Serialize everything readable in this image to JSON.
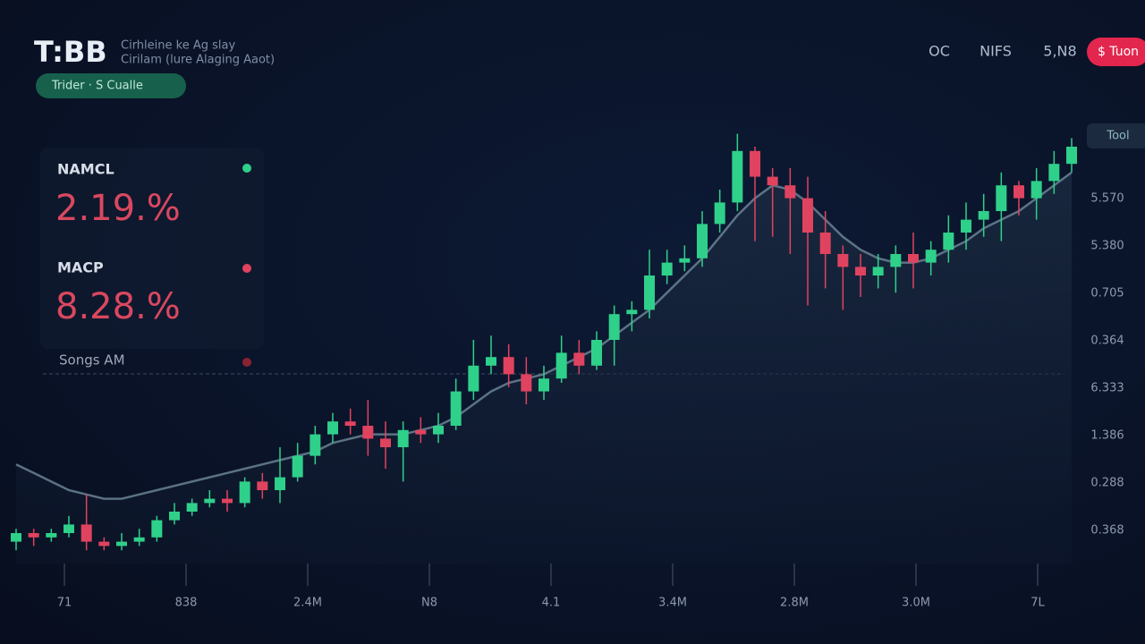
{
  "header": {
    "logo": "T:BB",
    "subtitle_1": "Cirhleine ke Ag slay",
    "subtitle_2": "Cirilam (lure Alaging Aaot)",
    "badge": "Trider · S Cualle"
  },
  "nav": [
    "OC",
    "NIFS",
    "5,N8"
  ],
  "nav_button": "$ Tuon",
  "side_tag": "Tool",
  "stats": [
    {
      "label": "NAMCL",
      "value": "2.19.%"
    },
    {
      "label": "MACP",
      "value": "8.28.%"
    },
    {
      "label": "Songs AM"
    }
  ],
  "chart_data": {
    "type": "candlestick",
    "ylim": [
      0,
      100
    ],
    "up_color": "#2fd08a",
    "down_color": "#e0435f",
    "open": [
      3,
      5,
      4,
      5,
      7,
      3,
      2,
      3,
      4,
      8,
      10,
      12,
      13,
      12,
      17,
      15,
      18,
      23,
      28,
      31,
      30,
      27,
      25,
      29,
      28,
      30,
      38,
      44,
      46,
      42,
      38,
      41,
      47,
      44,
      50,
      56,
      57,
      65,
      68,
      69,
      77,
      82,
      94,
      88,
      86,
      83,
      75,
      70,
      67,
      65,
      67,
      70,
      68,
      71,
      75,
      78,
      80,
      86,
      83,
      87,
      91
    ],
    "close": [
      5,
      4,
      5,
      7,
      3,
      2,
      3,
      4,
      8,
      10,
      12,
      13,
      12,
      17,
      15,
      18,
      23,
      28,
      31,
      30,
      27,
      25,
      29,
      28,
      30,
      38,
      44,
      46,
      42,
      38,
      41,
      47,
      44,
      50,
      56,
      57,
      65,
      68,
      69,
      77,
      82,
      94,
      88,
      86,
      83,
      75,
      70,
      67,
      65,
      67,
      70,
      68,
      71,
      75,
      78,
      80,
      86,
      83,
      87,
      91,
      95
    ],
    "high": [
      6,
      6,
      6,
      9,
      14,
      4,
      5,
      6,
      9,
      12,
      13,
      15,
      15,
      18,
      19,
      25,
      26,
      30,
      33,
      34,
      36,
      31,
      31,
      32,
      33,
      41,
      50,
      51,
      49,
      46,
      44,
      51,
      50,
      52,
      58,
      59,
      71,
      71,
      72,
      80,
      85,
      98,
      95,
      90,
      90,
      88,
      80,
      72,
      70,
      70,
      72,
      75,
      73,
      79,
      82,
      84,
      89,
      87,
      90,
      94,
      97
    ],
    "low": [
      1,
      2,
      3,
      4,
      1,
      1,
      1,
      2,
      3,
      7,
      9,
      11,
      10,
      11,
      13,
      12,
      17,
      21,
      26,
      28,
      23,
      20,
      17,
      26,
      26,
      29,
      36,
      42,
      39,
      35,
      36,
      40,
      42,
      43,
      44,
      52,
      55,
      63,
      66,
      67,
      75,
      80,
      73,
      74,
      70,
      58,
      62,
      57,
      60,
      62,
      61,
      62,
      65,
      68,
      71,
      74,
      73,
      79,
      78,
      84,
      89
    ],
    "ma": {
      "color": "#6f8a9a",
      "values": [
        21,
        19,
        17,
        15,
        14,
        13,
        13,
        14,
        15,
        16,
        17,
        18,
        19,
        20,
        21,
        22,
        23,
        24,
        26,
        27,
        28,
        28,
        28,
        29,
        30,
        32,
        35,
        38,
        40,
        41,
        42,
        44,
        46,
        48,
        51,
        54,
        57,
        61,
        65,
        69,
        74,
        79,
        83,
        86,
        85,
        82,
        78,
        74,
        71,
        69,
        68,
        68,
        69,
        71,
        73,
        76,
        78,
        80,
        83,
        86,
        89
      ]
    },
    "price_labels": [
      "5.570",
      "5.380",
      "0.705",
      "0.364",
      "6.333",
      "1.386",
      "0.288",
      "0.368"
    ],
    "x_labels": [
      "71",
      "838",
      "2.4M",
      "N8",
      "4.1",
      "3.4M",
      "2.8M",
      "3.0M",
      "7L"
    ]
  }
}
